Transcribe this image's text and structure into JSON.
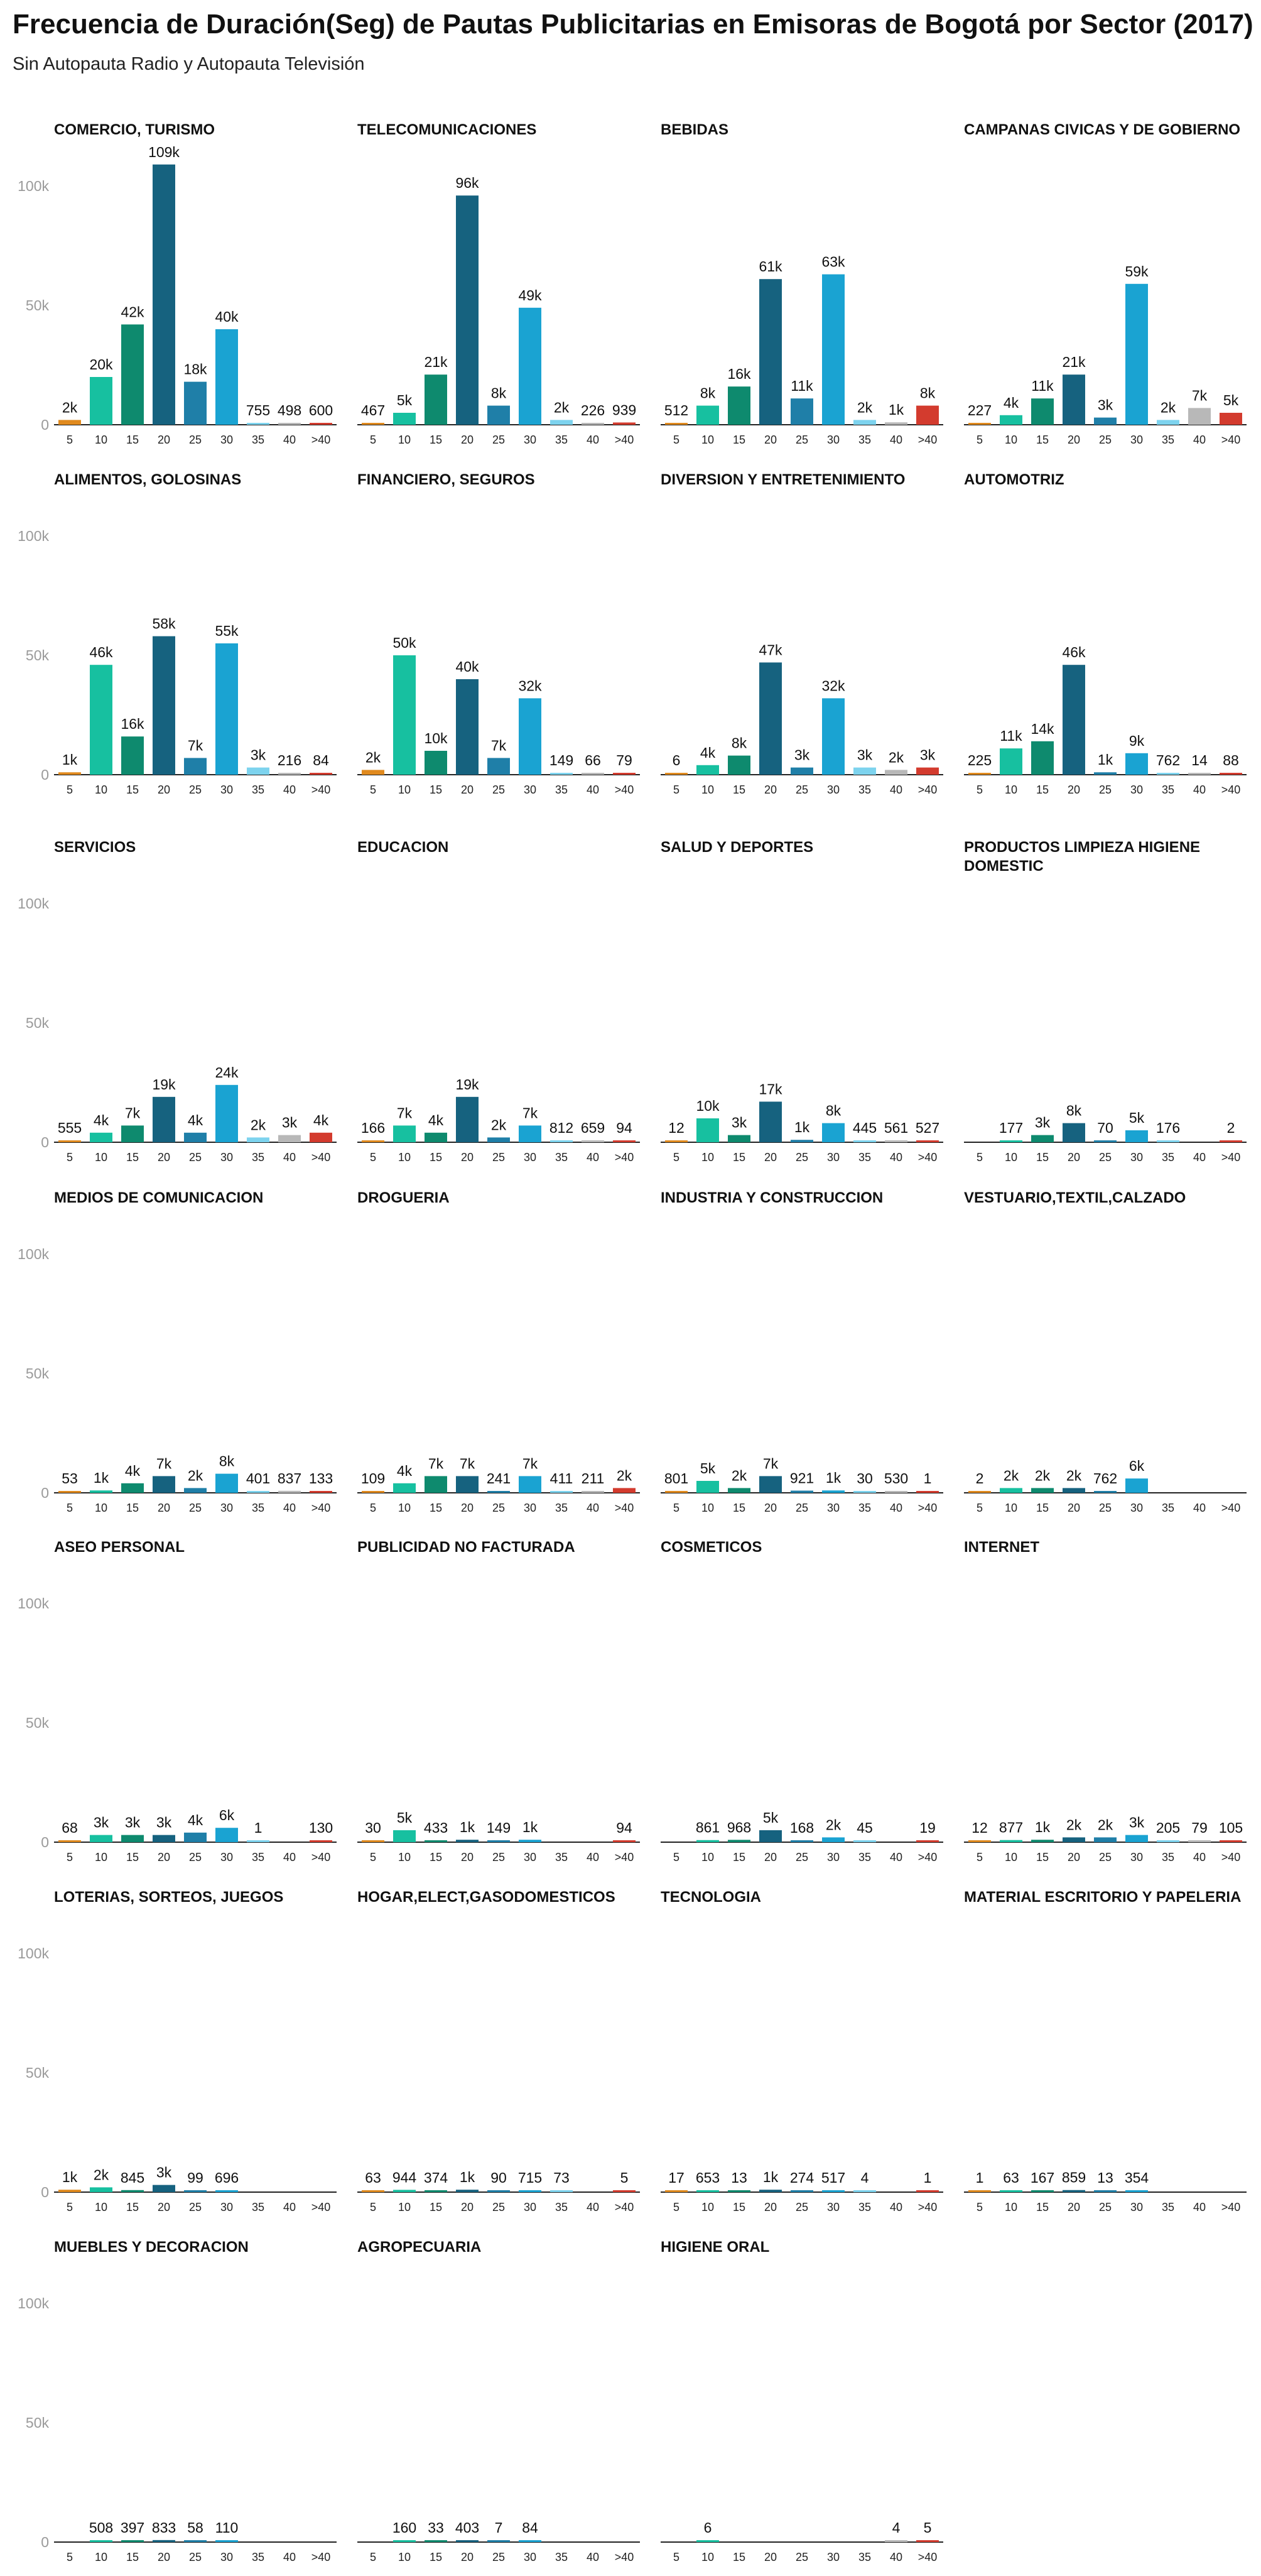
{
  "title": "Frecuencia de Duración(Seg) de Pautas Publicitarias en Emisoras de Bogotá por Sector (2017)",
  "subtitle": "Sin Autopauta Radio y Autopauta Televisión",
  "chart_data": {
    "type": "bar",
    "layout": "small-multiples",
    "columns": 4,
    "categories": [
      "5",
      "10",
      "15",
      "20",
      "25",
      "30",
      "35",
      "40",
      ">40"
    ],
    "category_colors": [
      "#e08a1e",
      "#17c0a0",
      "#0e8a6e",
      "#16627f",
      "#1f7fa8",
      "#1aa3d2",
      "#7dd3ee",
      "#b8b8b8",
      "#d33b2e"
    ],
    "ylim": [
      0,
      110000
    ],
    "yticks": [
      0,
      50000,
      100000
    ],
    "ytick_labels": [
      "0",
      "50k",
      "100k"
    ],
    "panels": [
      {
        "title": "COMERCIO, TURISMO",
        "values": [
          2000,
          20000,
          42000,
          109000,
          18000,
          40000,
          755,
          498,
          600
        ],
        "labels": [
          "2k",
          "20k",
          "42k",
          "109k",
          "18k",
          "40k",
          "755",
          "498",
          "600"
        ]
      },
      {
        "title": "TELECOMUNICACIONES",
        "values": [
          467,
          5000,
          21000,
          96000,
          8000,
          49000,
          2000,
          226,
          939
        ],
        "labels": [
          "467",
          "5k",
          "21k",
          "96k",
          "8k",
          "49k",
          "2k",
          "226",
          "939"
        ]
      },
      {
        "title": "BEBIDAS",
        "values": [
          512,
          8000,
          16000,
          61000,
          11000,
          63000,
          2000,
          1000,
          8000
        ],
        "labels": [
          "512",
          "8k",
          "16k",
          "61k",
          "11k",
          "63k",
          "2k",
          "1k",
          "8k"
        ]
      },
      {
        "title": "CAMPANAS CIVICAS Y DE GOBIERNO",
        "values": [
          227,
          4000,
          11000,
          21000,
          3000,
          59000,
          2000,
          7000,
          5000
        ],
        "labels": [
          "227",
          "4k",
          "11k",
          "21k",
          "3k",
          "59k",
          "2k",
          "7k",
          "5k"
        ]
      },
      {
        "title": "ALIMENTOS, GOLOSINAS",
        "values": [
          1000,
          46000,
          16000,
          58000,
          7000,
          55000,
          3000,
          216,
          84
        ],
        "labels": [
          "1k",
          "46k",
          "16k",
          "58k",
          "7k",
          "55k",
          "3k",
          "216",
          "84"
        ]
      },
      {
        "title": "FINANCIERO, SEGUROS",
        "values": [
          2000,
          50000,
          10000,
          40000,
          7000,
          32000,
          149,
          66,
          79
        ],
        "labels": [
          "2k",
          "50k",
          "10k",
          "40k",
          "7k",
          "32k",
          "149",
          "66",
          "79"
        ]
      },
      {
        "title": "DIVERSION Y ENTRETENIMIENTO",
        "values": [
          6,
          4000,
          8000,
          47000,
          3000,
          32000,
          3000,
          2000,
          3000
        ],
        "labels": [
          "6",
          "4k",
          "8k",
          "47k",
          "3k",
          "32k",
          "3k",
          "2k",
          "3k"
        ]
      },
      {
        "title": "AUTOMOTRIZ",
        "values": [
          225,
          11000,
          14000,
          46000,
          1000,
          9000,
          762,
          14,
          88
        ],
        "labels": [
          "225",
          "11k",
          "14k",
          "46k",
          "1k",
          "9k",
          "762",
          "14",
          "88"
        ]
      },
      {
        "title": "SERVICIOS",
        "values": [
          555,
          4000,
          7000,
          19000,
          4000,
          24000,
          2000,
          3000,
          4000
        ],
        "labels": [
          "555",
          "4k",
          "7k",
          "19k",
          "4k",
          "24k",
          "2k",
          "3k",
          "4k"
        ]
      },
      {
        "title": "EDUCACION",
        "values": [
          166,
          7000,
          4000,
          19000,
          2000,
          7000,
          812,
          659,
          94
        ],
        "labels": [
          "166",
          "7k",
          "4k",
          "19k",
          "2k",
          "7k",
          "812",
          "659",
          "94"
        ]
      },
      {
        "title": "SALUD Y DEPORTES",
        "values": [
          12,
          10000,
          3000,
          17000,
          1000,
          8000,
          445,
          561,
          527
        ],
        "labels": [
          "12",
          "10k",
          "3k",
          "17k",
          "1k",
          "8k",
          "445",
          "561",
          "527"
        ]
      },
      {
        "title": "PRODUCTOS LIMPIEZA HIGIENE DOMESTIC",
        "values": [
          null,
          177,
          3000,
          8000,
          70,
          5000,
          176,
          null,
          2
        ],
        "labels": [
          "",
          "177",
          "3k",
          "8k",
          "70",
          "5k",
          "176",
          "",
          "2"
        ]
      },
      {
        "title": "MEDIOS DE COMUNICACION",
        "values": [
          53,
          1000,
          4000,
          7000,
          2000,
          8000,
          401,
          837,
          133
        ],
        "labels": [
          "53",
          "1k",
          "4k",
          "7k",
          "2k",
          "8k",
          "401",
          "837",
          "133"
        ]
      },
      {
        "title": "DROGUERIA",
        "values": [
          109,
          4000,
          7000,
          7000,
          241,
          7000,
          411,
          211,
          2000
        ],
        "labels": [
          "109",
          "4k",
          "7k",
          "7k",
          "241",
          "7k",
          "411",
          "211",
          "2k"
        ]
      },
      {
        "title": "INDUSTRIA Y CONSTRUCCION",
        "values": [
          801,
          5000,
          2000,
          7000,
          921,
          1000,
          30,
          530,
          1
        ],
        "labels": [
          "801",
          "5k",
          "2k",
          "7k",
          "921",
          "1k",
          "30",
          "530",
          "1"
        ]
      },
      {
        "title": "VESTUARIO,TEXTIL,CALZADO",
        "values": [
          2,
          2000,
          2000,
          2000,
          762,
          6000,
          null,
          null,
          null
        ],
        "labels": [
          "2",
          "2k",
          "2k",
          "2k",
          "762",
          "6k",
          "",
          "",
          ""
        ]
      },
      {
        "title": "ASEO PERSONAL",
        "values": [
          68,
          3000,
          3000,
          3000,
          4000,
          6000,
          1,
          null,
          130
        ],
        "labels": [
          "68",
          "3k",
          "3k",
          "3k",
          "4k",
          "6k",
          "1",
          "",
          "130"
        ]
      },
      {
        "title": "PUBLICIDAD NO FACTURADA",
        "values": [
          30,
          5000,
          433,
          1000,
          149,
          1000,
          null,
          null,
          94
        ],
        "labels": [
          "30",
          "5k",
          "433",
          "1k",
          "149",
          "1k",
          "",
          "",
          "94"
        ]
      },
      {
        "title": "COSMETICOS",
        "values": [
          null,
          861,
          968,
          5000,
          168,
          2000,
          45,
          null,
          19
        ],
        "labels": [
          "",
          "861",
          "968",
          "5k",
          "168",
          "2k",
          "45",
          "",
          "19"
        ]
      },
      {
        "title": "INTERNET",
        "values": [
          12,
          877,
          1000,
          2000,
          2000,
          3000,
          205,
          79,
          105
        ],
        "labels": [
          "12",
          "877",
          "1k",
          "2k",
          "2k",
          "3k",
          "205",
          "79",
          "105"
        ]
      },
      {
        "title": "LOTERIAS, SORTEOS, JUEGOS",
        "values": [
          1000,
          2000,
          845,
          3000,
          99,
          696,
          null,
          null,
          null
        ],
        "labels": [
          "1k",
          "2k",
          "845",
          "3k",
          "99",
          "696",
          "",
          "",
          ""
        ]
      },
      {
        "title": "HOGAR,ELECT,GASODOMESTICOS",
        "values": [
          63,
          944,
          374,
          1000,
          90,
          715,
          73,
          null,
          5
        ],
        "labels": [
          "63",
          "944",
          "374",
          "1k",
          "90",
          "715",
          "73",
          "",
          "5"
        ]
      },
      {
        "title": "TECNOLOGIA",
        "values": [
          17,
          653,
          13,
          1000,
          274,
          517,
          4,
          null,
          1
        ],
        "labels": [
          "17",
          "653",
          "13",
          "1k",
          "274",
          "517",
          "4",
          "",
          "1"
        ]
      },
      {
        "title": "MATERIAL ESCRITORIO Y PAPELERIA",
        "values": [
          1,
          63,
          167,
          859,
          13,
          354,
          null,
          null,
          null
        ],
        "labels": [
          "1",
          "63",
          "167",
          "859",
          "13",
          "354",
          "",
          "",
          ""
        ]
      },
      {
        "title": "MUEBLES Y DECORACION",
        "values": [
          null,
          508,
          397,
          833,
          58,
          110,
          null,
          null,
          null
        ],
        "labels": [
          "",
          "508",
          "397",
          "833",
          "58",
          "110",
          "",
          "",
          ""
        ]
      },
      {
        "title": "AGROPECUARIA",
        "values": [
          null,
          160,
          33,
          403,
          7,
          84,
          null,
          null,
          null
        ],
        "labels": [
          "",
          "160",
          "33",
          "403",
          "7",
          "84",
          "",
          "",
          ""
        ]
      },
      {
        "title": "HIGIENE ORAL",
        "values": [
          null,
          6,
          null,
          null,
          null,
          null,
          null,
          4,
          5
        ],
        "labels": [
          "",
          "6",
          "",
          "",
          "",
          "",
          "",
          "4",
          "5"
        ]
      }
    ]
  }
}
